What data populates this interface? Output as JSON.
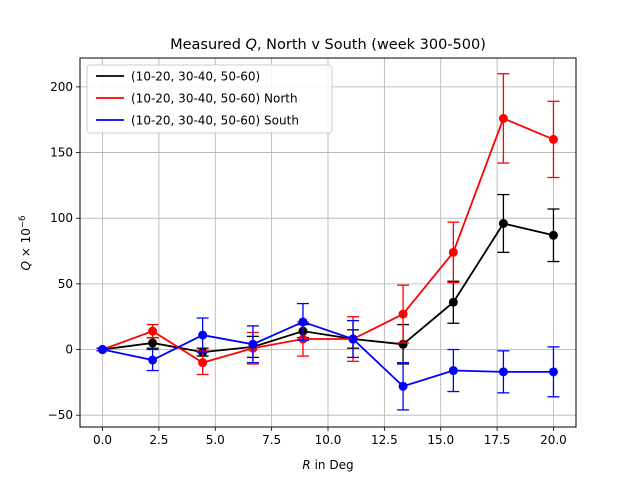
{
  "chart_data": {
    "type": "line",
    "title": "Measured Q, North v South (week 300-500)",
    "title_parts": [
      "Measured ",
      "Q",
      ", North v South (week 300-500)"
    ],
    "xlabel": "R in Deg",
    "xlabel_parts": [
      "R",
      " in Deg"
    ],
    "ylabel": "Q × 10^-6",
    "ylabel_parts": [
      "Q",
      " × 10",
      "−6"
    ],
    "xlim": [
      -1.0,
      21.0
    ],
    "ylim": [
      -59,
      222
    ],
    "xticks": [
      0.0,
      2.5,
      5.0,
      7.5,
      10.0,
      12.5,
      15.0,
      17.5,
      20.0
    ],
    "xtick_labels": [
      "0.0",
      "2.5",
      "5.0",
      "7.5",
      "10.0",
      "12.5",
      "15.0",
      "17.5",
      "20.0"
    ],
    "yticks": [
      -50,
      0,
      50,
      100,
      150,
      200
    ],
    "ytick_labels": [
      "−50",
      "0",
      "50",
      "100",
      "150",
      "200"
    ],
    "grid": true,
    "legend_position": "top-left",
    "x": [
      0.0,
      2.22,
      4.44,
      6.67,
      8.89,
      11.11,
      13.33,
      15.56,
      17.78,
      20.0
    ],
    "series": [
      {
        "name": "(10-20, 30-40, 50-60)",
        "color": "#000000",
        "values": [
          0,
          5,
          -2,
          2,
          14,
          8,
          4,
          36,
          96,
          87
        ],
        "errors": [
          1,
          4,
          3,
          8,
          5,
          7,
          15,
          16,
          22,
          20
        ]
      },
      {
        "name": "(10-20, 30-40, 50-60) North",
        "color": "#ff0000",
        "values": [
          0,
          14,
          -10,
          1,
          8,
          8,
          27,
          74,
          176,
          160
        ],
        "errors": [
          1,
          5,
          9,
          12,
          13,
          17,
          22,
          23,
          34,
          29
        ]
      },
      {
        "name": "(10-20, 30-40, 50-60) South",
        "color": "#0000ff",
        "values": [
          0,
          -8,
          11,
          4,
          21,
          8,
          -28,
          -16,
          -17,
          -17
        ],
        "errors": [
          1,
          8,
          13,
          14,
          14,
          14,
          18,
          16,
          16,
          19
        ]
      }
    ]
  }
}
